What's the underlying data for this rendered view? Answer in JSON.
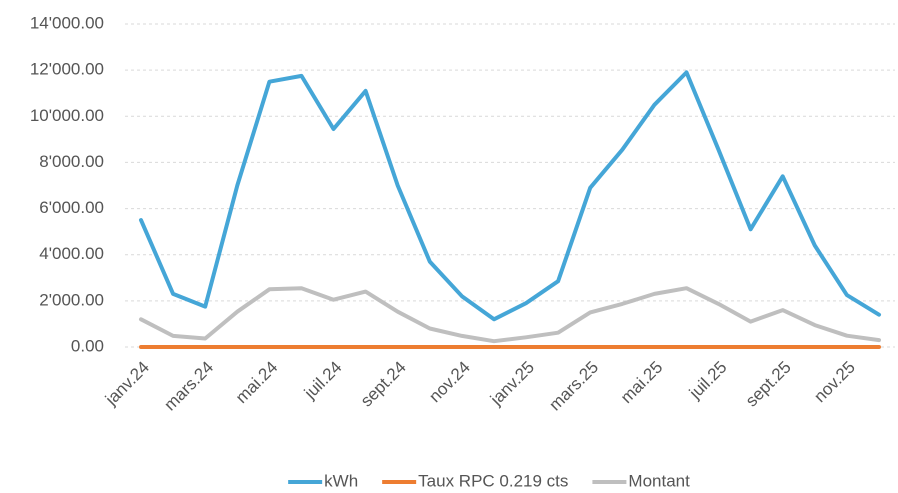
{
  "chart_data": {
    "type": "line",
    "categories": [
      "janv.24",
      null,
      "mars.24",
      null,
      "mai.24",
      null,
      "juil.24",
      null,
      "sept.24",
      null,
      "nov.24",
      null,
      "janv.25",
      null,
      "mars.25",
      null,
      "mai.25",
      null,
      "juil.25",
      null,
      "sept.25",
      null,
      "nov.25",
      null
    ],
    "series": [
      {
        "name": "kWh",
        "color": "#45a6d7",
        "values": [
          5500,
          2300,
          1750,
          7000,
          11500,
          11750,
          9450,
          11100,
          7000,
          3700,
          2200,
          1200,
          1900,
          2850,
          6900,
          8550,
          10500,
          11900,
          8550,
          5100,
          7400,
          4400,
          2250,
          1400
        ]
      },
      {
        "name": "Taux RPC 0.219 cts",
        "color": "#ed7d31",
        "values": [
          0.219,
          0.219,
          0.219,
          0.219,
          0.219,
          0.219,
          0.219,
          0.219,
          0.219,
          0.219,
          0.219,
          0.219,
          0.219,
          0.219,
          0.219,
          0.219,
          0.219,
          0.219,
          0.219,
          0.219,
          0.219,
          0.219,
          0.219,
          0.219
        ]
      },
      {
        "name": "Montant",
        "color": "#bfbfbf",
        "values": [
          1200,
          480,
          370,
          1530,
          2500,
          2550,
          2050,
          2400,
          1530,
          800,
          480,
          250,
          420,
          620,
          1500,
          1870,
          2300,
          2550,
          1870,
          1100,
          1600,
          950,
          490,
          300
        ]
      }
    ],
    "ylim": [
      0,
      14000
    ],
    "yticks": [
      {
        "value": 0,
        "label": "0.00"
      },
      {
        "value": 2000,
        "label": "2'000.00"
      },
      {
        "value": 4000,
        "label": "4'000.00"
      },
      {
        "value": 6000,
        "label": "6'000.00"
      },
      {
        "value": 8000,
        "label": "8'000.00"
      },
      {
        "value": 10000,
        "label": "10'000.00"
      },
      {
        "value": 12000,
        "label": "12'000.00"
      },
      {
        "value": 14000,
        "label": "14'000.00"
      }
    ],
    "grid": true,
    "legend": "bottom"
  }
}
